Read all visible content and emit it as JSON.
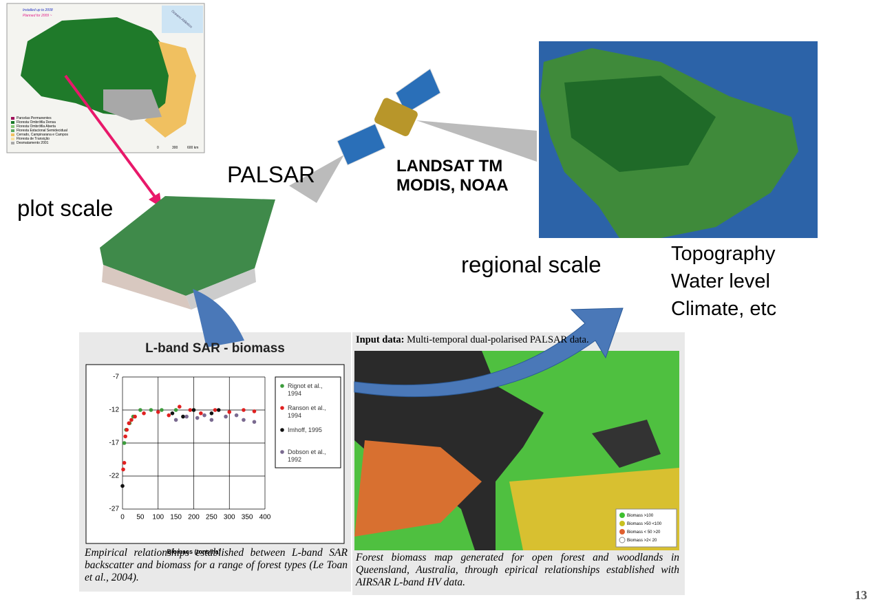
{
  "slide": {
    "plot_scale": "plot scale",
    "palsar": "PALSAR",
    "landsat": [
      "LANDSAT TM",
      "MODIS, NOAA"
    ],
    "regional_scale": "regional scale",
    "regional_data": [
      "Topography",
      "Water level",
      "Climate,  etc"
    ],
    "page_number": "13",
    "map": {
      "legend_top": [
        "Installed up to 2008",
        "Planned for 2009 ~"
      ],
      "ocean": "Oceano Atlântico",
      "legend": [
        "Parcelas Permanentes",
        "Floresta Ombrófila Densa",
        "Floresta Ombrófila Aberta",
        "Floresta Estacional Semidecidual",
        "Cerrado, Campinarana e Campos",
        "Floresta de Transição",
        "Desmatamento 2001"
      ],
      "scale": [
        "0",
        "300",
        "600 km"
      ]
    },
    "chart_caption": "Empirical relationships established between L-band SAR backscatter and biomass for a range of forest types (Le Toan et al., 2004).",
    "biomass_panel": {
      "input_label": "Input data:",
      "input_text": "Multi-temporal dual-polarised PALSAR data.",
      "legend": [
        "Biomass >100",
        "Biomass >50 <100",
        "Biomass < 50 >20",
        "Biomass >2< 20"
      ],
      "caption": "Forest biomass map generated for open forest and woodlands in Queensland, Australia, through epirical relationships established with AIRSAR L-band HV data."
    }
  },
  "chart_data": {
    "type": "scatter",
    "title": "L-band SAR - biomass",
    "x_label": "Biomass (tons/ha)",
    "xlim": [
      0,
      400
    ],
    "xticks": [
      0,
      50,
      100,
      150,
      200,
      250,
      300,
      350,
      400
    ],
    "ylim": [
      -27,
      -7
    ],
    "yticks": [
      -7,
      -12,
      -17,
      -22,
      -27
    ],
    "grid": true,
    "series": [
      {
        "name": "Rignot et al., 1994",
        "color": "#3c9c3c",
        "x": [
          5,
          10,
          20,
          30,
          50,
          80,
          110,
          150,
          200
        ],
        "values": [
          -17,
          -15,
          -14,
          -13,
          -12,
          -12,
          -12,
          -12,
          -12
        ]
      },
      {
        "name": "Ranson et al., 1994",
        "color": "#e02020",
        "x": [
          2,
          5,
          8,
          12,
          18,
          25,
          35,
          60,
          100,
          130,
          160,
          190,
          220,
          260,
          300,
          340,
          370
        ],
        "values": [
          -21,
          -20,
          -16,
          -15,
          -14,
          -13.5,
          -13,
          -12.5,
          -12.3,
          -12.8,
          -11.5,
          -12,
          -12.5,
          -12,
          -12.3,
          -12,
          -12.2
        ]
      },
      {
        "name": "Imhoff, 1995",
        "color": "#111111",
        "x": [
          0,
          140,
          170,
          200,
          250,
          270
        ],
        "values": [
          -23.5,
          -12.5,
          -13,
          -12,
          -12.5,
          -12
        ]
      },
      {
        "name": "Dobson et al., 1992",
        "color": "#7a6a90",
        "x": [
          150,
          180,
          210,
          230,
          250,
          290,
          320,
          340,
          370
        ],
        "values": [
          -13.5,
          -13,
          -13.2,
          -12.8,
          -13.5,
          -13,
          -12.8,
          -13.5,
          -13.8
        ]
      }
    ]
  }
}
